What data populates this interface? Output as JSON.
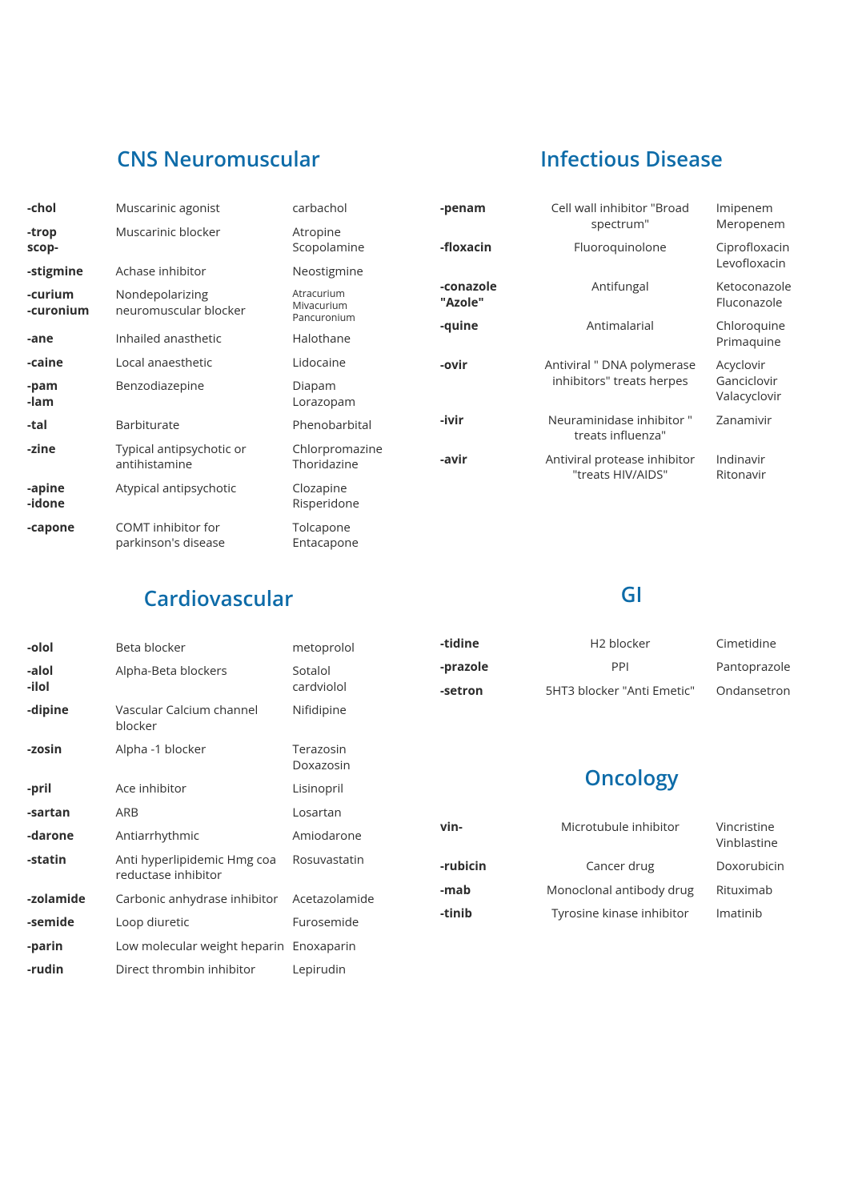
{
  "sections": {
    "cns": {
      "title": "CNS Neuromuscular",
      "rows": [
        {
          "suffix": "-chol",
          "class": "Muscarinic agonist",
          "example": "carbachol"
        },
        {
          "suffix": "-trop\nscop-",
          "class": "Muscarinic blocker",
          "example": "Atropine\nScopolamine"
        },
        {
          "suffix": "-stigmine",
          "class": "Achase inhibitor",
          "example": "Neostigmine"
        },
        {
          "suffix": "-curium\n-curonium",
          "class": "Nondepolarizing neuromuscular blocker",
          "example": "Atracurium\nMivacurium\nPancuronium",
          "small": true
        },
        {
          "suffix": "-ane",
          "class": "Inhailed anasthetic",
          "example": "Halothane"
        },
        {
          "suffix": "-caine",
          "class": "Local anaesthetic",
          "example": "Lidocaine"
        },
        {
          "suffix": "-pam\n-lam",
          "class": "Benzodiazepine",
          "example": "Diapam\nLorazopam"
        },
        {
          "suffix": "-tal",
          "class": "Barbiturate",
          "example": "Phenobarbital"
        },
        {
          "suffix": "-zine",
          "class": "Typical antipsychotic or antihistamine",
          "example": "Chlorpromazine\nThoridazine"
        },
        {
          "suffix": "-apine\n-idone",
          "class": "Atypical antipsychotic",
          "example": "Clozapine\nRisperidone"
        },
        {
          "suffix": "-capone",
          "class": "COMT inhibitor for parkinson's disease",
          "example": "Tolcapone\nEntacapone"
        }
      ]
    },
    "infectious": {
      "title": "Infectious Disease",
      "rows": [
        {
          "suffix": "-penam",
          "class": "Cell wall inhibitor \"Broad spectrum\"",
          "example": "Imipenem\nMeropenem"
        },
        {
          "suffix": "-floxacin",
          "class": "Fluoroquinolone",
          "example": "Ciprofloxacin\nLevofloxacin"
        },
        {
          "suffix": "-conazole\n\"Azole\"",
          "class": "Antifungal",
          "example": "Ketoconazole\nFluconazole"
        },
        {
          "suffix": "-quine",
          "class": "Antimalarial",
          "example": "Chloroquine\nPrimaquine"
        },
        {
          "suffix": "-ovir",
          "class": "Antiviral \" DNA polymerase inhibitors\" treats herpes",
          "example": "Acyclovir\nGanciclovir\nValacyclovir"
        },
        {
          "suffix": "-ivir",
          "class": "Neuraminidase inhibitor \" treats influenza\"",
          "example": "Zanamivir"
        },
        {
          "suffix": "-avir",
          "class": "Antiviral protease inhibitor \"treats HIV/AIDS\"",
          "example": "Indinavir\nRitonavir"
        }
      ]
    },
    "cardio": {
      "title": "Cardiovascular",
      "rows": [
        {
          "suffix": "-olol",
          "class": "Beta blocker",
          "example": "metoprolol"
        },
        {
          "suffix": "-alol\n-ilol",
          "class": "Alpha-Beta blockers",
          "example": "Sotalol\ncardviolol"
        },
        {
          "suffix": "-dipine",
          "class": "Vascular Calcium channel blocker",
          "example": "Nifidipine"
        },
        {
          "suffix": "-zosin",
          "class": "Alpha -1 blocker",
          "example": "Terazosin\nDoxazosin"
        },
        {
          "suffix": "-pril",
          "class": "Ace inhibitor",
          "example": "Lisinopril"
        },
        {
          "suffix": "-sartan",
          "class": "ARB",
          "example": "Losartan"
        },
        {
          "suffix": "-darone",
          "class": "Antiarrhythmic",
          "example": "Amiodarone"
        },
        {
          "suffix": "-statin",
          "class": "Anti hyperlipidemic Hmg coa reductase inhibitor",
          "example": "Rosuvastatin"
        },
        {
          "suffix": "-zolamide",
          "class": "Carbonic anhydrase inhibitor",
          "example": "Acetazolamide"
        },
        {
          "suffix": "-semide",
          "class": "Loop diuretic",
          "example": "Furosemide"
        },
        {
          "suffix": "-parin",
          "class": "Low molecular weight heparin",
          "example": "Enoxaparin"
        },
        {
          "suffix": "-rudin",
          "class": "Direct thrombin inhibitor",
          "example": "Lepirudin"
        }
      ]
    },
    "gi": {
      "title": "GI",
      "rows": [
        {
          "suffix": "-tidine",
          "class": "H2 blocker",
          "example": "Cimetidine"
        },
        {
          "suffix": "-prazole",
          "class": "PPI",
          "example": "Pantoprazole"
        },
        {
          "suffix": "-setron",
          "class": "5HT3 blocker \"Anti Emetic\"",
          "example": "Ondansetron"
        }
      ]
    },
    "oncology": {
      "title": "Oncology",
      "rows": [
        {
          "suffix": "vin-",
          "class": "Microtubule inhibitor",
          "example": "Vincristine\nVinblastine"
        },
        {
          "suffix": "-rubicin",
          "class": "Cancer drug",
          "example": "Doxorubicin"
        },
        {
          "suffix": "-mab",
          "class": "Monoclonal antibody drug",
          "example": "Rituximab"
        },
        {
          "suffix": "-tinib",
          "class": "Tyrosine kinase inhibitor",
          "example": "Imatinib"
        }
      ]
    }
  },
  "styling": {
    "title_color": "#0d6ba8",
    "title_fontsize": 26,
    "body_fontsize": 15,
    "suffix_weight": 700,
    "background": "#ffffff",
    "text_color": "#2b2b2b"
  }
}
